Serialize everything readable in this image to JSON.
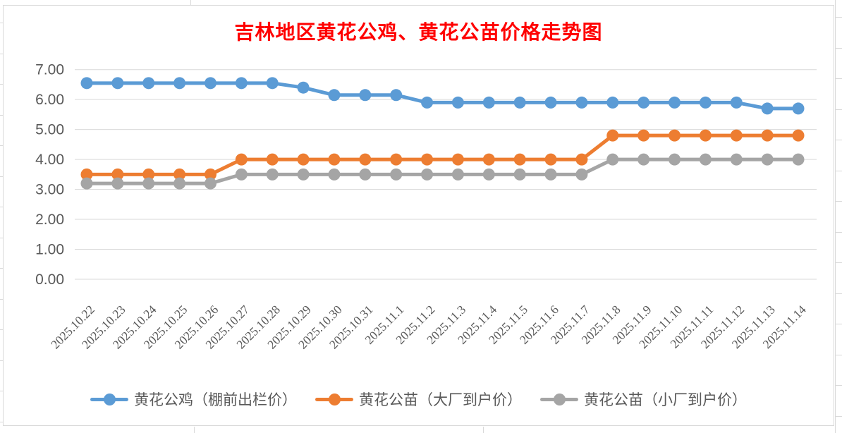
{
  "window": {
    "app_context": "spreadsheet-worksheet-with-embedded-chart",
    "background_color": "#ffffff",
    "worksheet_gridline_color": "#d9d9d9"
  },
  "chart": {
    "border_color": "#d9d9d9",
    "plot_gridline_color": "#d9d9d9",
    "axis_text_color": "#595959",
    "title_color": "#ff0000"
  },
  "chart_data": {
    "type": "line",
    "title": "吉林地区黄花公鸡、黄花公苗价格走势图",
    "categories": [
      "2025.10.22",
      "2025.10.23",
      "2025.10.24",
      "2025.10.25",
      "2025.10.26",
      "2025.10.27",
      "2025.10.28",
      "2025.10.29",
      "2025.10.30",
      "2025.10.31",
      "2025.11.1",
      "2025.11.2",
      "2025.11.3",
      "2025.11.4",
      "2025.11.5",
      "2025.11.6",
      "2025.11.7",
      "2025.11.8",
      "2025.11.9",
      "2025.11.10",
      "2025.11.11",
      "2025.11.12",
      "2025.11.13",
      "2025.11.14"
    ],
    "series": [
      {
        "name": "黄花公鸡（棚前出栏价）",
        "color": "#5B9BD5",
        "values": [
          6.55,
          6.55,
          6.55,
          6.55,
          6.55,
          6.55,
          6.55,
          6.4,
          6.15,
          6.15,
          6.15,
          5.9,
          5.9,
          5.9,
          5.9,
          5.9,
          5.9,
          5.9,
          5.9,
          5.9,
          5.9,
          5.9,
          5.7,
          5.7
        ]
      },
      {
        "name": "黄花公苗（大厂到户价）",
        "color": "#ED7D31",
        "values": [
          3.5,
          3.5,
          3.5,
          3.5,
          3.5,
          4.0,
          4.0,
          4.0,
          4.0,
          4.0,
          4.0,
          4.0,
          4.0,
          4.0,
          4.0,
          4.0,
          4.0,
          4.8,
          4.8,
          4.8,
          4.8,
          4.8,
          4.8,
          4.8
        ]
      },
      {
        "name": "黄花公苗（小厂到户价）",
        "color": "#A5A5A5",
        "values": [
          3.2,
          3.2,
          3.2,
          3.2,
          3.2,
          3.5,
          3.5,
          3.5,
          3.5,
          3.5,
          3.5,
          3.5,
          3.5,
          3.5,
          3.5,
          3.5,
          3.5,
          4.0,
          4.0,
          4.0,
          4.0,
          4.0,
          4.0,
          4.0
        ]
      }
    ],
    "xlabel": "",
    "ylabel": "",
    "ylim": [
      0,
      7
    ],
    "ytick_step": 1,
    "yticks": [
      "0.00",
      "1.00",
      "2.00",
      "3.00",
      "4.00",
      "5.00",
      "6.00",
      "7.00"
    ],
    "grid": true,
    "x_label_rotation_deg": -45,
    "legend_position": "bottom",
    "marker": "circle"
  }
}
